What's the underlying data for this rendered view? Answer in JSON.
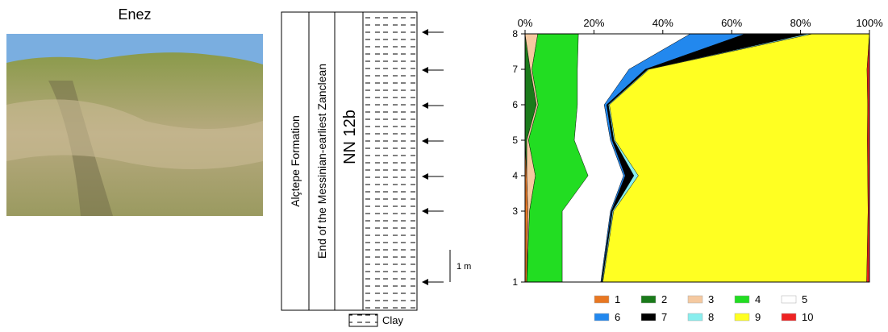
{
  "photo": {
    "title": "Enez"
  },
  "column": {
    "formation": "Alçtepe Formation",
    "age": "End of the Messinian-earliest Zanclean",
    "zone": "NN 12b",
    "scale_label": "1 m",
    "lithology_label": "Clay"
  },
  "chart_data": {
    "type": "area",
    "stacked": true,
    "orientation": "horizontal",
    "levels": [
      1,
      3,
      4,
      5,
      6,
      7,
      8
    ],
    "ylim": [
      1,
      8
    ],
    "yticks": [
      1,
      3,
      4,
      5,
      6,
      7,
      8
    ],
    "xlim": [
      0,
      100
    ],
    "xticks": [
      {
        "value": 0,
        "label": "0%"
      },
      {
        "value": 20,
        "label": "20%"
      },
      {
        "value": 40,
        "label": "40%"
      },
      {
        "value": 60,
        "label": "60%"
      },
      {
        "value": 80,
        "label": "80%"
      },
      {
        "value": 100,
        "label": "100%"
      }
    ],
    "series": [
      {
        "name": "1",
        "color": "#e87722",
        "values": [
          0.5,
          0.8,
          0.5,
          0,
          0,
          0,
          0
        ]
      },
      {
        "name": "2",
        "color": "#1a7a1a",
        "values": [
          0,
          0,
          0,
          0.5,
          3.3,
          1.5,
          0
        ]
      },
      {
        "name": "3",
        "color": "#f5c9a0",
        "values": [
          0,
          0.5,
          2.5,
          0.5,
          0.5,
          0.5,
          3.7
        ]
      },
      {
        "name": "4",
        "color": "#22dd22",
        "values": [
          10.3,
          9.5,
          15.3,
          13.3,
          11.4,
          13.2,
          11.8
        ]
      },
      {
        "name": "5",
        "color": "#ffffff",
        "values": [
          11.2,
          14,
          10.3,
          10.5,
          7.8,
          15,
          32.5
        ]
      },
      {
        "name": "6",
        "color": "#2288ee",
        "values": [
          0.2,
          0.3,
          0.5,
          0.5,
          0.7,
          4.7,
          16
        ]
      },
      {
        "name": "7",
        "color": "#000000",
        "values": [
          0.2,
          0.3,
          2.5,
          0.5,
          0.5,
          0.8,
          18
        ]
      },
      {
        "name": "8",
        "color": "#88eeee",
        "values": [
          0.2,
          0.3,
          1.3,
          0.3,
          0.3,
          0.3,
          1.5
        ]
      },
      {
        "name": "9",
        "color": "#ffff22",
        "values": [
          76.6,
          73.9,
          66.6,
          73.3,
          75,
          63.3,
          16.5
        ]
      },
      {
        "name": "10",
        "color": "#ee2222",
        "values": [
          0.8,
          0.4,
          0.5,
          0.6,
          0.5,
          0.7,
          0
        ]
      }
    ]
  }
}
